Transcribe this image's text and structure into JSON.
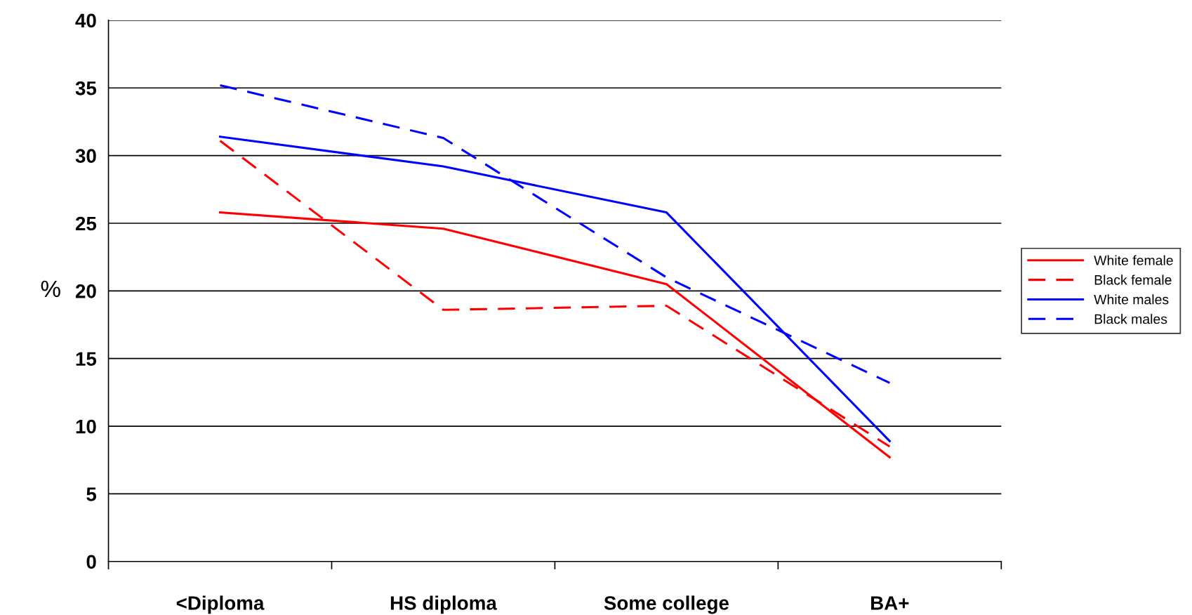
{
  "chart_data": {
    "type": "line",
    "ylabel": "%",
    "categories": [
      "<Diploma",
      "HS diploma",
      "Some college",
      "BA+"
    ],
    "series": [
      {
        "name": "White female",
        "color": "#ff0000",
        "line_style": "solid",
        "values": [
          25.8,
          24.6,
          20.5,
          7.7
        ]
      },
      {
        "name": "Black female",
        "color": "#ff0000",
        "line_style": "dashed",
        "values": [
          31.1,
          18.6,
          18.9,
          8.5
        ]
      },
      {
        "name": "White males",
        "color": "#0000ff",
        "line_style": "solid",
        "values": [
          31.4,
          29.2,
          25.8,
          8.9
        ]
      },
      {
        "name": "Black males",
        "color": "#0000ff",
        "line_style": "dashed",
        "values": [
          35.2,
          31.3,
          21.0,
          13.2
        ]
      }
    ],
    "ylim": [
      0,
      40
    ],
    "yticks": [
      0,
      5,
      10,
      15,
      20,
      25,
      30,
      35,
      40
    ],
    "grid": "y",
    "legend": "right",
    "marker": "none"
  }
}
